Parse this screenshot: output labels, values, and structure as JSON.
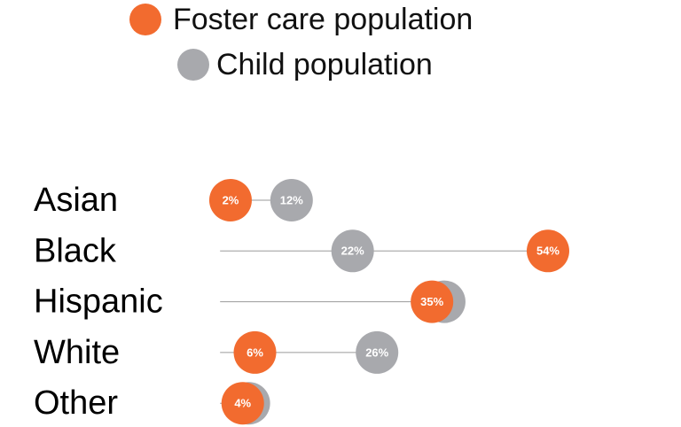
{
  "chart_data": {
    "type": "dot",
    "categories": [
      "Asian",
      "Black",
      "Hispanic",
      "White",
      "Other"
    ],
    "series": [
      {
        "name": "Foster care population",
        "color": "#f26b2f",
        "values": [
          2,
          54,
          35,
          6,
          4
        ],
        "value_labels": [
          "2%",
          "54%",
          "35%",
          "6%",
          "4%"
        ]
      },
      {
        "name": "Child population",
        "color": "#a8a9ad",
        "values": [
          12,
          22,
          37,
          26,
          5
        ],
        "value_labels": [
          "12%",
          "22%",
          null,
          "26%",
          null
        ]
      }
    ]
  }
}
